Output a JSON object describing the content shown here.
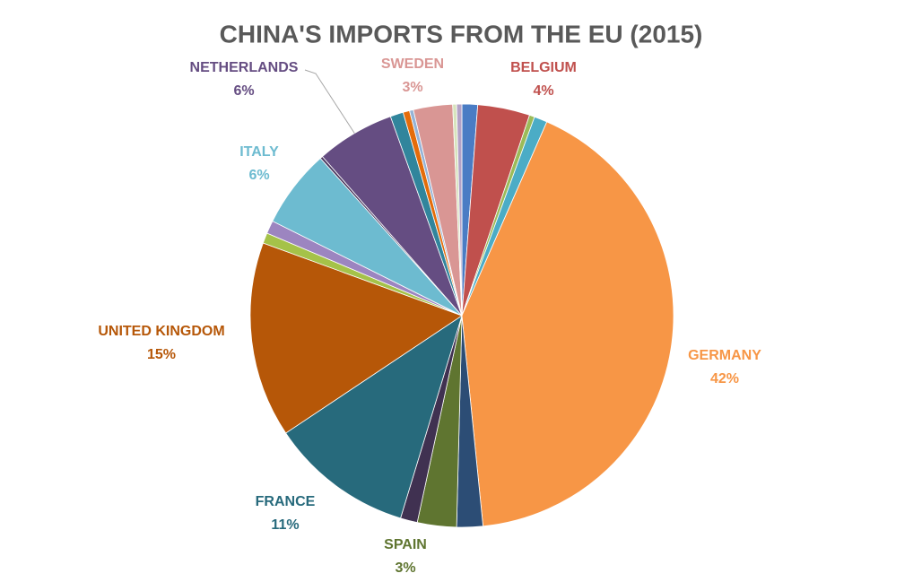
{
  "chart_data": {
    "type": "pie",
    "title": "CHINA'S IMPORTS FROM THE EU (2015)",
    "categories": [
      null,
      "BELGIUM",
      null,
      null,
      "GERMANY",
      null,
      "SPAIN",
      null,
      "FRANCE",
      "UNITED KINGDOM",
      null,
      null,
      "ITALY",
      null,
      "NETHERLANDS",
      null,
      null,
      null,
      "SWEDEN",
      null,
      null
    ],
    "values": [
      1.2,
      4,
      0.4,
      1.0,
      42,
      2.0,
      3,
      1.3,
      11,
      15,
      0.8,
      1.0,
      6,
      0.2,
      6,
      1.0,
      0.5,
      0.3,
      3,
      0.3,
      0.4
    ],
    "value_labels": [
      null,
      "4%",
      null,
      null,
      "42%",
      null,
      "3%",
      null,
      "11%",
      "15%",
      null,
      null,
      "6%",
      null,
      "6%",
      null,
      null,
      null,
      "3%",
      null,
      null
    ],
    "colors": [
      "#4a7cc4",
      "#c0504d",
      "#9bbb59",
      "#4bacc6",
      "#f79646",
      "#2c4d75",
      "#5f7530",
      "#403151",
      "#276a7c",
      "#b65708",
      "#a5c249",
      "#9c85c0",
      "#6dbbd0",
      "#4d3b62",
      "#654d82",
      "#31859c",
      "#e46c0a",
      "#95b3d7",
      "#d99694",
      "#d7e4bd",
      "#b3a2c7"
    ]
  }
}
